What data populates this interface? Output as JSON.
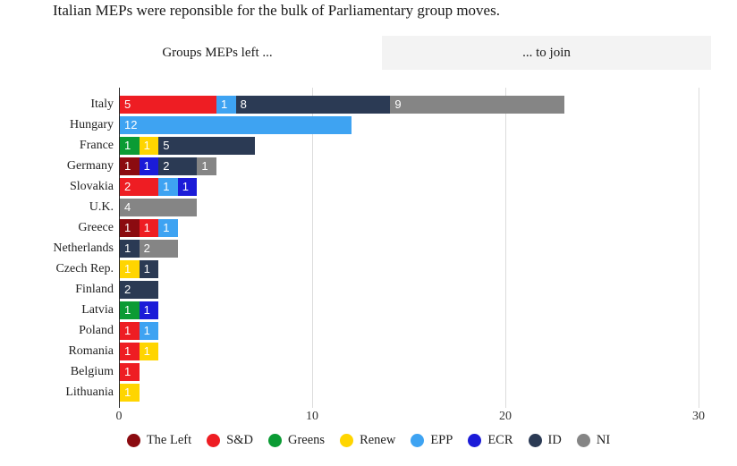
{
  "title": "Italian MEPs were reponsible for the bulk of Parliamentary group moves.",
  "tabs": [
    {
      "label": "Groups MEPs left ...",
      "active": true
    },
    {
      "label": "... to join",
      "active": false
    }
  ],
  "colors": {
    "The Left": "#8b0b10",
    "S&D": "#ee1d23",
    "Greens": "#0b9b34",
    "Renew": "#ffd500",
    "EPP": "#3ea3f2",
    "ECR": "#1b1bd8",
    "ID": "#2b3a54",
    "NI": "#858585"
  },
  "chart_data": {
    "type": "bar",
    "orientation": "horizontal",
    "stacked": true,
    "categories": [
      "Italy",
      "Hungary",
      "France",
      "Germany",
      "Slovakia",
      "U.K.",
      "Greece",
      "Netherlands",
      "Czech Rep.",
      "Finland",
      "Latvia",
      "Poland",
      "Romania",
      "Belgium",
      "Lithuania"
    ],
    "series": [
      {
        "name": "The Left",
        "values": [
          0,
          0,
          0,
          1,
          0,
          0,
          1,
          0,
          0,
          0,
          0,
          0,
          0,
          0,
          0
        ]
      },
      {
        "name": "S&D",
        "values": [
          5,
          0,
          0,
          0,
          2,
          0,
          1,
          0,
          0,
          0,
          0,
          1,
          1,
          1,
          0
        ]
      },
      {
        "name": "Greens",
        "values": [
          0,
          0,
          1,
          0,
          0,
          0,
          0,
          0,
          0,
          0,
          1,
          0,
          0,
          0,
          0
        ]
      },
      {
        "name": "Renew",
        "values": [
          0,
          0,
          1,
          0,
          0,
          0,
          0,
          0,
          1,
          0,
          0,
          0,
          1,
          0,
          1
        ]
      },
      {
        "name": "EPP",
        "values": [
          1,
          12,
          0,
          0,
          1,
          0,
          1,
          0,
          0,
          0,
          0,
          1,
          0,
          0,
          0
        ]
      },
      {
        "name": "ECR",
        "values": [
          0,
          0,
          0,
          1,
          1,
          0,
          0,
          0,
          0,
          0,
          1,
          0,
          0,
          0,
          0
        ]
      },
      {
        "name": "ID",
        "values": [
          8,
          0,
          5,
          2,
          0,
          0,
          0,
          1,
          1,
          2,
          0,
          0,
          0,
          0,
          0
        ]
      },
      {
        "name": "NI",
        "values": [
          9,
          0,
          0,
          1,
          0,
          4,
          0,
          2,
          0,
          0,
          0,
          0,
          0,
          0,
          0
        ]
      }
    ],
    "xlim": [
      0,
      30
    ],
    "xticks": [
      0,
      10,
      20,
      30
    ],
    "grid": true,
    "value_labels": "inside-left",
    "legend_position": "bottom",
    "legend": [
      "The Left",
      "S&D",
      "Greens",
      "Renew",
      "EPP",
      "ECR",
      "ID",
      "NI"
    ]
  }
}
